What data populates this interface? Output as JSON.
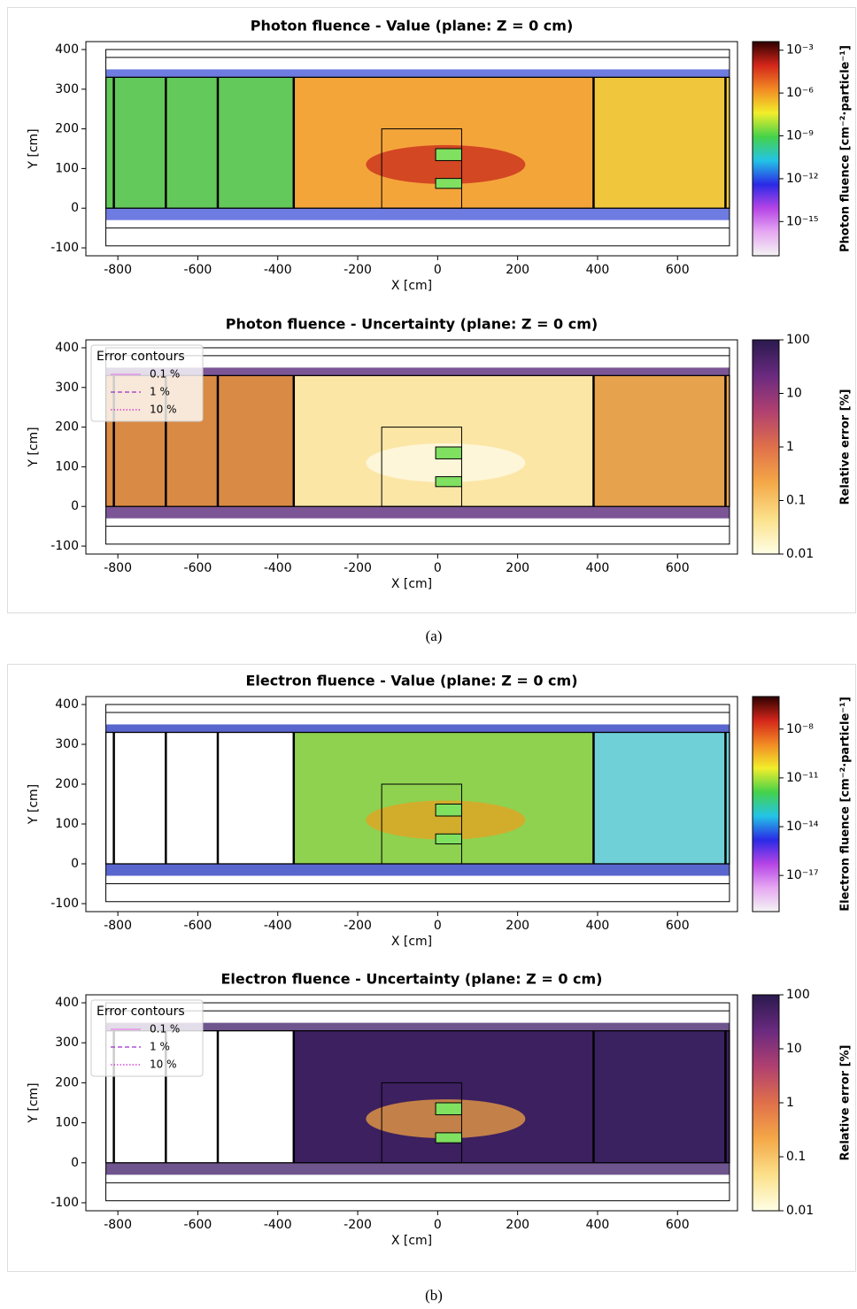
{
  "chart_data": [
    {
      "type": "heatmap",
      "title": "Photon fluence - Value (plane: Z = 0 cm)",
      "x_label": "X [cm]",
      "y_label": "Y [cm]",
      "xlim": [
        -880,
        750
      ],
      "xticks": [
        -800,
        -600,
        -400,
        -200,
        0,
        200,
        400,
        600
      ],
      "ylim": [
        -120,
        420
      ],
      "yticks": [
        -100,
        0,
        100,
        200,
        300,
        400
      ],
      "colorbar": {
        "label": "Photon fluence [cm⁻²·particle⁻¹]",
        "log": true,
        "lim": [
          4e-18,
          0.004
        ],
        "ticks": [
          {
            "value": 0.001,
            "label": "10⁻³"
          },
          {
            "value": 1e-06,
            "label": "10⁻⁶"
          },
          {
            "value": 1e-09,
            "label": "10⁻⁹"
          },
          {
            "value": 1e-12,
            "label": "10⁻¹²"
          },
          {
            "value": 1e-15,
            "label": "10⁻¹⁵"
          }
        ],
        "colors": [
          "#f4f4f4",
          "#e6a8f2",
          "#b544e6",
          "#2a2ae6",
          "#23c4e6",
          "#45d24a",
          "#f2ee2a",
          "#f28a24",
          "#d4261a",
          "#2e0000"
        ]
      }
    },
    {
      "type": "heatmap",
      "title": "Photon fluence - Uncertainty (plane: Z = 0 cm)",
      "x_label": "X [cm]",
      "y_label": "Y [cm]",
      "xlim": [
        -880,
        750
      ],
      "xticks": [
        -800,
        -600,
        -400,
        -200,
        0,
        200,
        400,
        600
      ],
      "ylim": [
        -120,
        420
      ],
      "yticks": [
        -100,
        0,
        100,
        200,
        300,
        400
      ],
      "colorbar": {
        "label": "Relative error [%]",
        "log": true,
        "lim": [
          0.01,
          100
        ],
        "ticks": [
          100,
          10,
          1,
          0.1,
          0.01
        ],
        "colors": [
          "#ffffe6",
          "#fbe08a",
          "#f4a848",
          "#e0704a",
          "#b04070",
          "#6a2a80",
          "#2a1a4e"
        ]
      },
      "legend": {
        "title": "Error contours",
        "entries": [
          {
            "name": "0.1 %",
            "color": "#e884e8",
            "dash": "solid"
          },
          {
            "name": "1 %",
            "color": "#9a30c8",
            "dash": "dashed"
          },
          {
            "name": "10 %",
            "color": "#d020d0",
            "dash": "dotted"
          }
        ]
      }
    },
    {
      "type": "heatmap",
      "title": "Electron fluence - Value (plane: Z = 0 cm)",
      "x_label": "X [cm]",
      "y_label": "Y [cm]",
      "xlim": [
        -880,
        750
      ],
      "xticks": [
        -800,
        -600,
        -400,
        -200,
        0,
        200,
        400,
        600
      ],
      "ylim": [
        -120,
        420
      ],
      "yticks": [
        -100,
        0,
        100,
        200,
        300,
        400
      ],
      "colorbar": {
        "label": "Electron fluence [cm⁻²·particle⁻¹]",
        "log": true,
        "lim": [
          6e-20,
          1e-06
        ],
        "ticks": [
          {
            "value": 1e-08,
            "label": "10⁻⁸"
          },
          {
            "value": 1e-11,
            "label": "10⁻¹¹"
          },
          {
            "value": 1e-14,
            "label": "10⁻¹⁴"
          },
          {
            "value": 1e-17,
            "label": "10⁻¹⁷"
          }
        ],
        "colors": [
          "#f4f4f4",
          "#e6a8f2",
          "#b544e6",
          "#2a2ae6",
          "#23c4e6",
          "#45d24a",
          "#f2ee2a",
          "#f28a24",
          "#d4261a",
          "#2e0000"
        ]
      }
    },
    {
      "type": "heatmap",
      "title": "Electron fluence - Uncertainty (plane: Z = 0 cm)",
      "x_label": "X [cm]",
      "y_label": "Y [cm]",
      "xlim": [
        -880,
        750
      ],
      "xticks": [
        -800,
        -600,
        -400,
        -200,
        0,
        200,
        400,
        600
      ],
      "ylim": [
        -120,
        420
      ],
      "yticks": [
        -100,
        0,
        100,
        200,
        300,
        400
      ],
      "colorbar": {
        "label": "Relative error [%]",
        "log": true,
        "lim": [
          0.01,
          100
        ],
        "ticks": [
          100,
          10,
          1,
          0.1,
          0.01
        ],
        "colors": [
          "#ffffe6",
          "#fbe08a",
          "#f4a848",
          "#e0704a",
          "#b04070",
          "#6a2a80",
          "#2a1a4e"
        ]
      },
      "legend": {
        "title": "Error contours",
        "entries": [
          {
            "name": "0.1 %",
            "color": "#e884e8",
            "dash": "solid"
          },
          {
            "name": "1 %",
            "color": "#9a30c8",
            "dash": "dashed"
          },
          {
            "name": "10 %",
            "color": "#d020d0",
            "dash": "dotted"
          }
        ]
      }
    }
  ],
  "captions": [
    "(a)",
    "(b)"
  ]
}
